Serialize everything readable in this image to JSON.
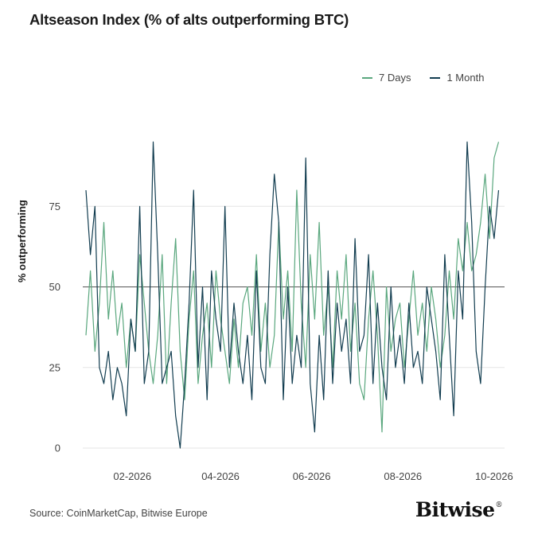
{
  "title": "Altseason Index (% of alts outperforming BTC)",
  "source": "Source: CoinMarketCap, Bitwise Europe",
  "brand": "Bitwise",
  "brand_mark": "®",
  "chart_data": {
    "type": "line",
    "title": "Altseason Index (% of alts outperforming BTC)",
    "ylabel": "% outperforming",
    "xlabel": "",
    "ylim": [
      0,
      100
    ],
    "yticks": [
      0,
      25,
      50,
      75
    ],
    "xticks": [
      "02-2026",
      "04-2026",
      "06-2026",
      "08-2026",
      "10-2026"
    ],
    "xtick_positions": [
      31,
      90,
      151,
      212,
      273
    ],
    "x_range": [
      0,
      280
    ],
    "reference_line": 50,
    "grid": "horizontal",
    "legend_position": "top-right",
    "series": [
      {
        "name": "7 Days",
        "color": "#5aa77e",
        "x": [
          0,
          3,
          6,
          9,
          12,
          15,
          18,
          21,
          24,
          27,
          30,
          33,
          36,
          39,
          42,
          45,
          48,
          51,
          54,
          57,
          60,
          63,
          66,
          69,
          72,
          75,
          78,
          81,
          84,
          87,
          90,
          93,
          96,
          99,
          102,
          105,
          108,
          111,
          114,
          117,
          120,
          123,
          126,
          129,
          132,
          135,
          138,
          141,
          144,
          147,
          150,
          153,
          156,
          159,
          162,
          165,
          168,
          171,
          174,
          177,
          180,
          183,
          186,
          189,
          192,
          195,
          198,
          201,
          204,
          207,
          210,
          213,
          216,
          219,
          222,
          225,
          228,
          231,
          234,
          237,
          240,
          243,
          246,
          249,
          252,
          255,
          258,
          261,
          264,
          267,
          270,
          273,
          276
        ],
        "values": [
          35,
          55,
          30,
          45,
          70,
          40,
          55,
          35,
          45,
          25,
          40,
          30,
          60,
          45,
          30,
          20,
          35,
          60,
          20,
          45,
          65,
          30,
          15,
          40,
          55,
          20,
          35,
          45,
          25,
          55,
          40,
          30,
          20,
          40,
          25,
          45,
          50,
          35,
          60,
          30,
          45,
          25,
          35,
          70,
          40,
          55,
          30,
          80,
          45,
          25,
          60,
          40,
          70,
          35,
          50,
          25,
          55,
          40,
          60,
          30,
          45,
          20,
          15,
          40,
          55,
          35,
          5,
          50,
          30,
          40,
          45,
          25,
          40,
          55,
          35,
          45,
          30,
          50,
          40,
          25,
          35,
          55,
          40,
          65,
          55,
          70,
          55,
          60,
          70,
          85,
          65,
          90,
          95
        ]
      },
      {
        "name": "1 Month",
        "color": "#123d50",
        "x": [
          0,
          3,
          6,
          9,
          12,
          15,
          18,
          21,
          24,
          27,
          30,
          33,
          36,
          39,
          42,
          45,
          48,
          51,
          54,
          57,
          60,
          63,
          66,
          69,
          72,
          75,
          78,
          81,
          84,
          87,
          90,
          93,
          96,
          99,
          102,
          105,
          108,
          111,
          114,
          117,
          120,
          123,
          126,
          129,
          132,
          135,
          138,
          141,
          144,
          147,
          150,
          153,
          156,
          159,
          162,
          165,
          168,
          171,
          174,
          177,
          180,
          183,
          186,
          189,
          192,
          195,
          198,
          201,
          204,
          207,
          210,
          213,
          216,
          219,
          222,
          225,
          228,
          231,
          234,
          237,
          240,
          243,
          246,
          249,
          252,
          255,
          258,
          261,
          264,
          267,
          270,
          273,
          276
        ],
        "values": [
          80,
          60,
          75,
          25,
          20,
          30,
          15,
          25,
          20,
          10,
          40,
          30,
          75,
          20,
          30,
          95,
          60,
          20,
          25,
          30,
          10,
          0,
          20,
          45,
          80,
          25,
          50,
          15,
          55,
          40,
          30,
          75,
          25,
          45,
          30,
          20,
          35,
          15,
          55,
          25,
          20,
          60,
          85,
          70,
          15,
          50,
          20,
          35,
          25,
          90,
          20,
          5,
          35,
          15,
          55,
          20,
          45,
          30,
          40,
          20,
          65,
          30,
          35,
          60,
          20,
          45,
          25,
          15,
          50,
          25,
          35,
          20,
          45,
          25,
          30,
          20,
          50,
          40,
          30,
          15,
          60,
          35,
          10,
          55,
          40,
          95,
          70,
          30,
          20,
          50,
          75,
          65,
          80
        ]
      }
    ]
  }
}
